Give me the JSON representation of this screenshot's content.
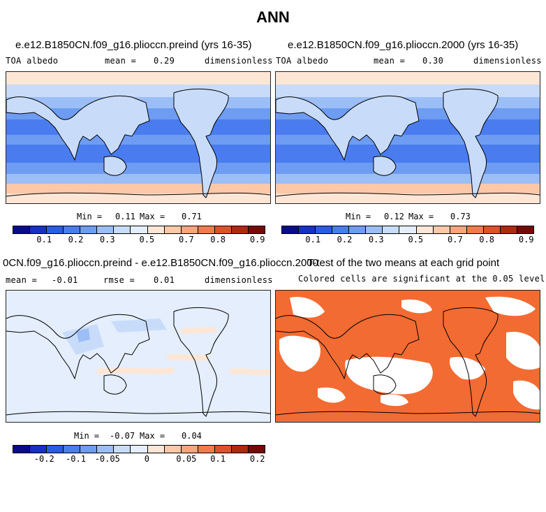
{
  "page": {
    "title": "ANN"
  },
  "panels": [
    {
      "title": "e.e12.B1850CN.f09_g16.plioccn.preind (yrs 16-35)",
      "variable": "TOA albedo",
      "stat_label": "mean =",
      "stat_value": "0.29",
      "units": "dimensionless",
      "min_label": "Min =",
      "min_value": "0.11",
      "max_label": "Max =",
      "max_value": "0.71",
      "colorbar_ticks": [
        "0.1",
        "0.2",
        "0.3",
        "0.5",
        "0.7",
        "0.8",
        "0.9"
      ]
    },
    {
      "title": "e.e12.B1850CN.f09_g16.plioccn.2000 (yrs 16-35)",
      "variable": "TOA albedo",
      "stat_label": "mean =",
      "stat_value": "0.30",
      "units": "dimensionless",
      "min_label": "Min =",
      "min_value": "0.12",
      "max_label": "Max =",
      "max_value": "0.73",
      "colorbar_ticks": [
        "0.1",
        "0.2",
        "0.3",
        "0.5",
        "0.7",
        "0.8",
        "0.9"
      ]
    },
    {
      "title": "0CN.f09_g16.plioccn.preind - e.e12.B1850CN.f09_g16.plioccn.2000",
      "stat_label": "mean =",
      "stat_value": "-0.01",
      "rmse_label": "rmse =",
      "rmse_value": "0.01",
      "units": "dimensionless",
      "min_label": "Min =",
      "min_value": "-0.07",
      "max_label": "Max =",
      "max_value": "0.04",
      "colorbar_ticks": [
        "-0.2",
        "-0.1",
        "-0.05",
        "0",
        "0.05",
        "0.1",
        "0.2"
      ]
    },
    {
      "title": "T-test of the two means at each grid point",
      "subtitle": "Colored cells are significant at the 0.05 level"
    }
  ],
  "colors": {
    "colorbar": [
      "#0a0a8c",
      "#1630c8",
      "#2a5ae6",
      "#4a7cf0",
      "#6e9cf2",
      "#9cbef6",
      "#c8dcfa",
      "#e4eefc",
      "#fde6d6",
      "#fcc8a8",
      "#f8a47c",
      "#f47a4e",
      "#e0502a",
      "#b02810",
      "#780808"
    ],
    "significant": "#f26b33"
  },
  "chart_data": [
    {
      "type": "heatmap",
      "title": "e.e12.B1850CN.f09_g16.plioccn.preind (yrs 16-35)",
      "variable": "TOA albedo",
      "mean": 0.29,
      "min": 0.11,
      "max": 0.71,
      "units": "dimensionless",
      "levels": [
        0.1,
        0.2,
        0.3,
        0.5,
        0.7,
        0.8,
        0.9
      ]
    },
    {
      "type": "heatmap",
      "title": "e.e12.B1850CN.f09_g16.plioccn.2000 (yrs 16-35)",
      "variable": "TOA albedo",
      "mean": 0.3,
      "min": 0.12,
      "max": 0.73,
      "units": "dimensionless",
      "levels": [
        0.1,
        0.2,
        0.3,
        0.5,
        0.7,
        0.8,
        0.9
      ]
    },
    {
      "type": "heatmap",
      "title": "0CN.f09_g16.plioccn.preind - e.e12.B1850CN.f09_g16.plioccn.2000",
      "mean": -0.01,
      "rmse": 0.01,
      "min": -0.07,
      "max": 0.04,
      "units": "dimensionless",
      "levels": [
        -0.2,
        -0.1,
        -0.05,
        0,
        0.05,
        0.1,
        0.2
      ]
    },
    {
      "type": "heatmap",
      "title": "T-test of the two means at each grid point",
      "subtitle": "Colored cells are significant at the 0.05 level"
    }
  ]
}
